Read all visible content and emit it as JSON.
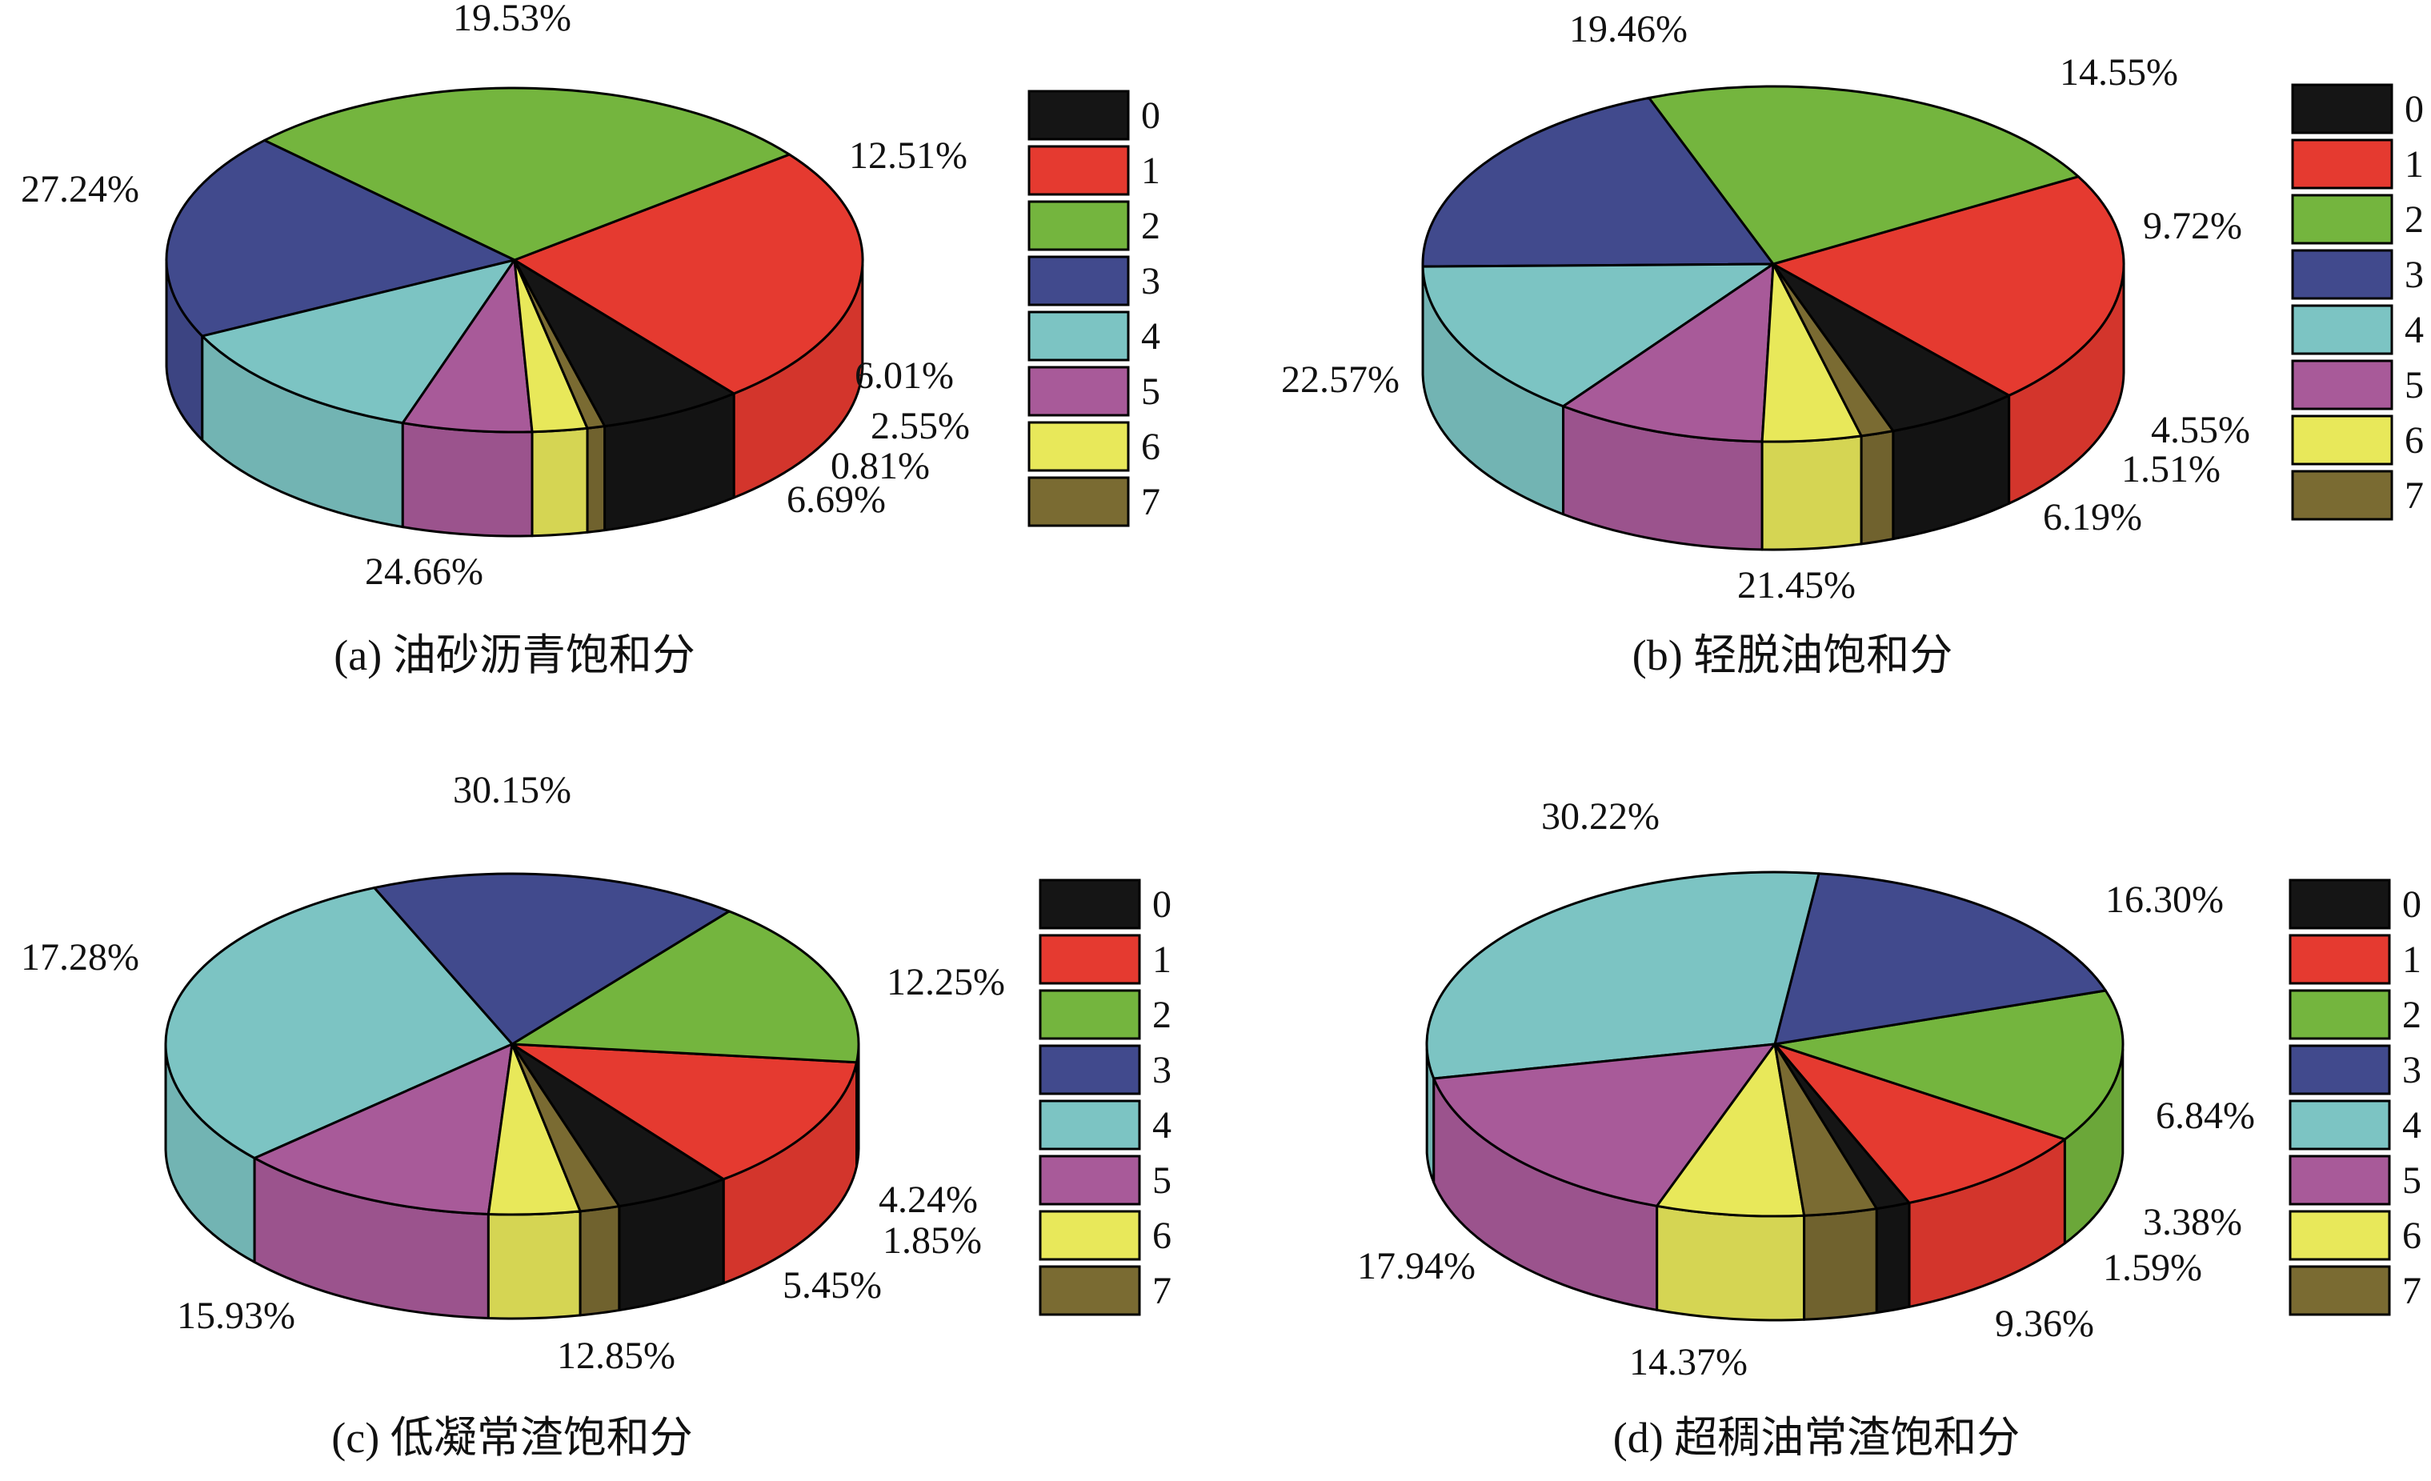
{
  "colors": {
    "0": "#151515",
    "1": "#e53a30",
    "2": "#74b53e",
    "3": "#414a8d",
    "4": "#7cc4c3",
    "5": "#a85a99",
    "6": "#e8e85a",
    "7": "#7a6b32"
  },
  "legend_labels": [
    "0",
    "1",
    "2",
    "3",
    "4",
    "5",
    "6",
    "7"
  ],
  "chart_data": [
    {
      "type": "pie",
      "title": "(a) 油砂沥青饱和分",
      "categories": [
        "0",
        "1",
        "2",
        "3",
        "4",
        "5",
        "6",
        "7"
      ],
      "values": [
        6.69,
        24.66,
        27.24,
        19.53,
        12.51,
        6.01,
        2.55,
        0.81
      ],
      "labels": [
        "6.69%",
        "24.66%",
        "27.24%",
        "19.53%",
        "12.51%",
        "6.01%",
        "2.55%",
        "0.81%"
      ],
      "legend": "right"
    },
    {
      "type": "pie",
      "title": "(b) 轻脱油饱和分",
      "categories": [
        "0",
        "1",
        "2",
        "3",
        "4",
        "5",
        "6",
        "7"
      ],
      "values": [
        6.19,
        21.45,
        22.57,
        19.46,
        14.55,
        9.72,
        4.55,
        1.51
      ],
      "labels": [
        "6.19%",
        "21.45%",
        "22.57%",
        "19.46%",
        "14.55%",
        "9.72%",
        "4.55%",
        "1.51%"
      ],
      "legend": "right"
    },
    {
      "type": "pie",
      "title": "(c) 低凝常渣饱和分",
      "categories": [
        "0",
        "1",
        "2",
        "3",
        "4",
        "5",
        "6",
        "7"
      ],
      "values": [
        5.45,
        12.85,
        15.93,
        17.28,
        30.15,
        12.25,
        4.24,
        1.85
      ],
      "labels": [
        "5.45%",
        "12.85%",
        "15.93%",
        "17.28%",
        "30.15%",
        "12.25%",
        "4.24%",
        "1.85%"
      ],
      "legend": "right"
    },
    {
      "type": "pie",
      "title": "(d) 超稠油常渣饱和分",
      "categories": [
        "0",
        "1",
        "2",
        "3",
        "4",
        "5",
        "6",
        "7"
      ],
      "values": [
        1.59,
        9.36,
        14.37,
        17.94,
        30.22,
        16.3,
        6.84,
        3.38
      ],
      "labels": [
        "1.59%",
        "9.36%",
        "14.37%",
        "17.94%",
        "30.22%",
        "16.30%",
        "6.84%",
        "3.38%"
      ],
      "legend": "right"
    }
  ]
}
